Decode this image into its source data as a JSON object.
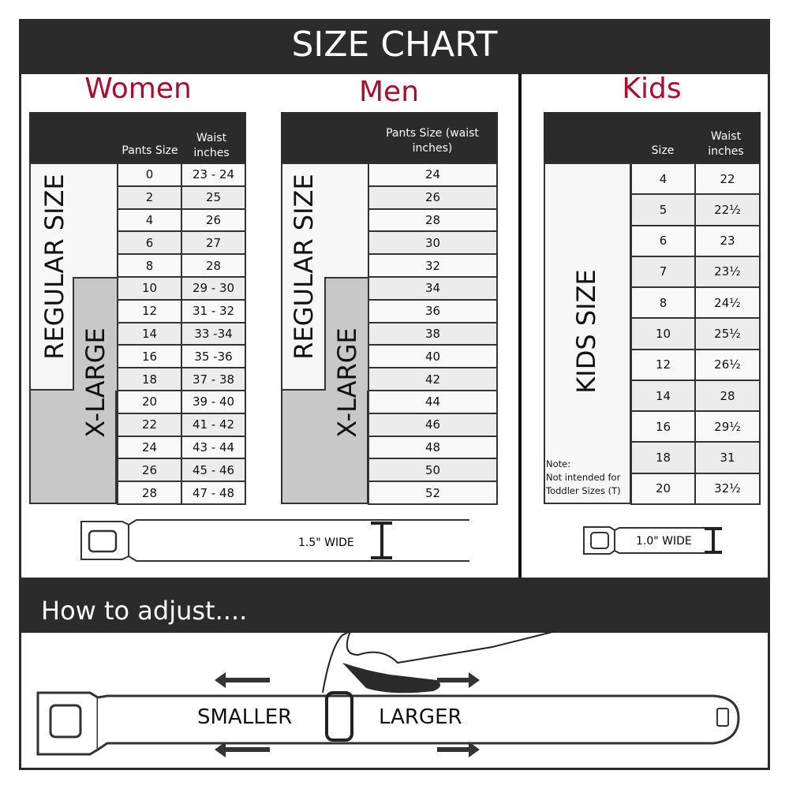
{
  "title": "SIZE CHART",
  "women": {
    "title": "Women",
    "col1": "Pants Size",
    "col2": "Waist inches",
    "regular_label": "REGULAR SIZE",
    "xlarge_label": "X-LARGE",
    "rows": [
      [
        "0",
        "23 - 24"
      ],
      [
        "2",
        "25"
      ],
      [
        "4",
        "26"
      ],
      [
        "6",
        "27"
      ],
      [
        "8",
        "28"
      ],
      [
        "10",
        "29 - 30"
      ],
      [
        "12",
        "31 - 32"
      ],
      [
        "14",
        "33 -34"
      ],
      [
        "16",
        "35 -36"
      ],
      [
        "18",
        "37 - 38"
      ],
      [
        "20",
        "39 - 40"
      ],
      [
        "22",
        "41 - 42"
      ],
      [
        "24",
        "43 - 44"
      ],
      [
        "26",
        "45 - 46"
      ],
      [
        "28",
        "47 - 48"
      ]
    ],
    "width_label": "1.5\" WIDE"
  },
  "men": {
    "title": "Men",
    "col1": "Pants Size (waist inches)",
    "regular_label": "REGULAR SIZE",
    "xlarge_label": "X-LARGE",
    "rows": [
      "24",
      "26",
      "28",
      "30",
      "32",
      "34",
      "36",
      "38",
      "40",
      "42",
      "44",
      "46",
      "48",
      "50",
      "52"
    ]
  },
  "kids": {
    "title": "Kids",
    "col1": "Size",
    "col2": "Waist inches",
    "label": "KIDS SIZE",
    "note": "Note:",
    "note_text": "Not intended for Toddler Sizes (T)",
    "rows": [
      [
        "4",
        "22"
      ],
      [
        "5",
        "22½"
      ],
      [
        "6",
        "23"
      ],
      [
        "7",
        "23½"
      ],
      [
        "8",
        "24½"
      ],
      [
        "10",
        "25½"
      ],
      [
        "12",
        "26½"
      ],
      [
        "14",
        "28"
      ],
      [
        "16",
        "29½"
      ],
      [
        "18",
        "31"
      ],
      [
        "20",
        "32½"
      ]
    ],
    "width_label": "1.0\" WIDE"
  },
  "adjust": {
    "title": "How to adjust....",
    "smaller": "SMALLER",
    "larger": "LARGER"
  },
  "colors": {
    "dark": "#2b2b2b",
    "accent": "#a50f30",
    "xlarge_fill": "#c8c8c8",
    "alt_row": "#ececec"
  }
}
